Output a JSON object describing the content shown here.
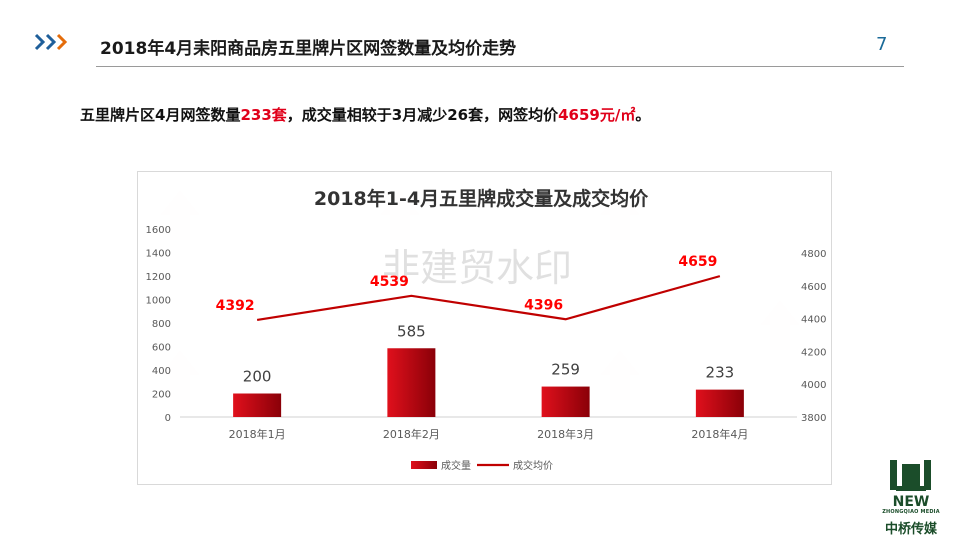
{
  "header": {
    "title": "2018年4月耒阳商品房五里牌片区网签数量及均价走势",
    "page_number": "7"
  },
  "summary": {
    "part1": "五里牌片区4月网签数量",
    "count": "233套",
    "part2": "，成交量相较于3月减少26套，网签均价",
    "price": "4659元/㎡",
    "part3": "。"
  },
  "watermark": {
    "center": "非建贸水印"
  },
  "logo": {
    "line1": "NEW",
    "line2": "ZHONGQIAO MEDIA",
    "line3": "中桥传媒"
  },
  "colors": {
    "bar": "#c0000e",
    "line": "#c00000",
    "accent_orange": "#e46c0a",
    "accent_blue": "#1f5f9a",
    "label_red": "#ff0000"
  },
  "chart_data": {
    "type": "bar",
    "title": "2018年1-4月五里牌成交量及成交均价",
    "categories": [
      "2018年1月",
      "2018年2月",
      "2018年3月",
      "2018年4月"
    ],
    "series": [
      {
        "name": "成交量",
        "type": "bar",
        "axis": "left",
        "values": [
          200,
          585,
          259,
          233
        ]
      },
      {
        "name": "成交均价",
        "type": "line",
        "axis": "right",
        "values": [
          4392,
          4539,
          4396,
          4659
        ]
      }
    ],
    "y_left": {
      "min": 0,
      "max": 1600,
      "ticks": [
        0,
        200,
        400,
        600,
        800,
        1000,
        1200,
        1400,
        1600
      ]
    },
    "y_right": {
      "min": 3800,
      "max": 4800,
      "ticks": [
        3800,
        4000,
        4200,
        4400,
        4600,
        4800
      ]
    },
    "grid": false,
    "legend": "bottom"
  }
}
